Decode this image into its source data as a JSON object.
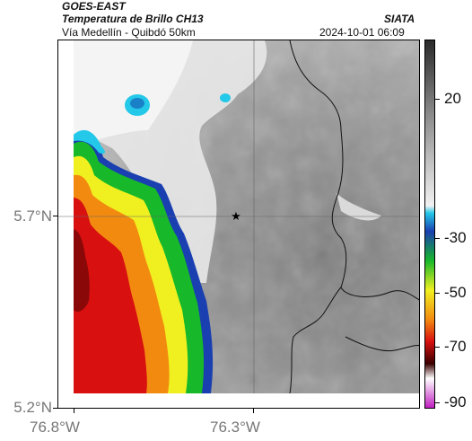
{
  "header": {
    "satellite": "GOES-EAST",
    "product": "Temperatura de Brillo CH13",
    "region": "Vía Medellín - Quibdó 50km",
    "source": "SIATA",
    "datetime": "2024-10-01 06:09"
  },
  "axes": {
    "lat_ticks": [
      "5.7°N",
      "5.2°N"
    ],
    "lon_ticks": [
      "76.8°W",
      "76.3°W"
    ]
  },
  "colorbar": {
    "labels": [
      "20",
      "-30",
      "-50",
      "-70",
      "-90"
    ],
    "colors": {
      "warm": "#2a2a2a",
      "mid_gray": "#8a8a8a",
      "light": "#f2f2f2",
      "cyan": "#24c8e8",
      "blue": "#1a3fb0",
      "green": "#17b82a",
      "yellow": "#f0f020",
      "orange": "#f28a10",
      "red": "#d81010",
      "dark_red": "#3a0000",
      "magenta": "#c020c0"
    }
  },
  "map": {
    "marker_icon": "star-icon"
  }
}
